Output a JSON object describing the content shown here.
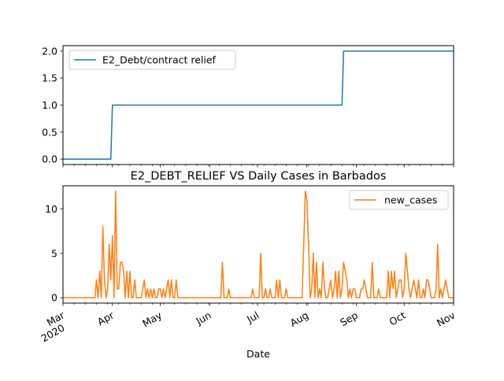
{
  "chart_data": [
    {
      "type": "line",
      "title": "",
      "xlabel": "",
      "ylabel": "",
      "xlim": [
        "2020-03-01",
        "2020-11-01"
      ],
      "ylim": [
        -0.1,
        2.1
      ],
      "yticks": [
        0.0,
        0.5,
        1.0,
        1.5,
        2.0
      ],
      "ytick_labels": [
        "0.0",
        "0.5",
        "1.0",
        "1.5",
        "2.0"
      ],
      "legend": "upper-left",
      "grid": false,
      "series": [
        {
          "name": "E2_Debt/contract relief",
          "color": "#1f77b4",
          "points": [
            [
              "2020-03-01",
              0
            ],
            [
              "2020-03-31",
              0
            ],
            [
              "2020-04-01",
              1
            ],
            [
              "2020-08-23",
              1
            ],
            [
              "2020-08-24",
              2
            ],
            [
              "2020-11-01",
              2
            ]
          ]
        }
      ]
    },
    {
      "type": "line",
      "title": "E2_DEBT_RELIEF VS Daily Cases in Barbados",
      "xlabel": "Date",
      "ylabel": "",
      "xlim": [
        "2020-03-01",
        "2020-11-01"
      ],
      "ylim": [
        -0.6,
        12.6
      ],
      "yticks": [
        0,
        5,
        10
      ],
      "ytick_labels": [
        "0",
        "5",
        "10"
      ],
      "xtick_labels": [
        {
          "date": "2020-03-01",
          "label": "Mar",
          "sub": "2020"
        },
        {
          "date": "2020-04-01",
          "label": "Apr",
          "sub": ""
        },
        {
          "date": "2020-05-01",
          "label": "May",
          "sub": ""
        },
        {
          "date": "2020-06-01",
          "label": "Jun",
          "sub": ""
        },
        {
          "date": "2020-07-01",
          "label": "Jul",
          "sub": ""
        },
        {
          "date": "2020-08-01",
          "label": "Aug",
          "sub": ""
        },
        {
          "date": "2020-09-01",
          "label": "Sep",
          "sub": ""
        },
        {
          "date": "2020-10-01",
          "label": "Oct",
          "sub": ""
        },
        {
          "date": "2020-11-01",
          "label": "Nov",
          "sub": ""
        }
      ],
      "legend": "upper-right",
      "grid": false,
      "series": [
        {
          "name": "new_cases",
          "color": "#ff7f0e",
          "points": [
            [
              "2020-03-01",
              0
            ],
            [
              "2020-03-21",
              0
            ],
            [
              "2020-03-22",
              2
            ],
            [
              "2020-03-23",
              0
            ],
            [
              "2020-03-24",
              3
            ],
            [
              "2020-03-25",
              0
            ],
            [
              "2020-03-26",
              8
            ],
            [
              "2020-03-27",
              2
            ],
            [
              "2020-03-28",
              0
            ],
            [
              "2020-03-29",
              1
            ],
            [
              "2020-03-30",
              6
            ],
            [
              "2020-03-31",
              2
            ],
            [
              "2020-04-01",
              7
            ],
            [
              "2020-04-02",
              0
            ],
            [
              "2020-04-03",
              12
            ],
            [
              "2020-04-04",
              1
            ],
            [
              "2020-04-05",
              1
            ],
            [
              "2020-04-06",
              4
            ],
            [
              "2020-04-07",
              4
            ],
            [
              "2020-04-08",
              3
            ],
            [
              "2020-04-09",
              0
            ],
            [
              "2020-04-10",
              3
            ],
            [
              "2020-04-11",
              0
            ],
            [
              "2020-04-12",
              3
            ],
            [
              "2020-04-13",
              0
            ],
            [
              "2020-04-14",
              0
            ],
            [
              "2020-04-15",
              2
            ],
            [
              "2020-04-16",
              0
            ],
            [
              "2020-04-17",
              0
            ],
            [
              "2020-04-18",
              0
            ],
            [
              "2020-04-19",
              0
            ],
            [
              "2020-04-20",
              1
            ],
            [
              "2020-04-21",
              2
            ],
            [
              "2020-04-22",
              0
            ],
            [
              "2020-04-23",
              1
            ],
            [
              "2020-04-24",
              0
            ],
            [
              "2020-04-25",
              1
            ],
            [
              "2020-04-26",
              0
            ],
            [
              "2020-04-27",
              1
            ],
            [
              "2020-04-28",
              0
            ],
            [
              "2020-04-29",
              0
            ],
            [
              "2020-04-30",
              1
            ],
            [
              "2020-05-01",
              1
            ],
            [
              "2020-05-02",
              0
            ],
            [
              "2020-05-03",
              1
            ],
            [
              "2020-05-04",
              0
            ],
            [
              "2020-05-05",
              1
            ],
            [
              "2020-05-06",
              2
            ],
            [
              "2020-05-07",
              0
            ],
            [
              "2020-05-08",
              2
            ],
            [
              "2020-05-09",
              0
            ],
            [
              "2020-05-10",
              0
            ],
            [
              "2020-05-11",
              2
            ],
            [
              "2020-05-12",
              0
            ],
            [
              "2020-05-13",
              0
            ],
            [
              "2020-06-08",
              0
            ],
            [
              "2020-06-09",
              4
            ],
            [
              "2020-06-10",
              0
            ],
            [
              "2020-06-12",
              0
            ],
            [
              "2020-06-13",
              1
            ],
            [
              "2020-06-14",
              0
            ],
            [
              "2020-06-27",
              0
            ],
            [
              "2020-06-28",
              1
            ],
            [
              "2020-06-29",
              0
            ],
            [
              "2020-07-02",
              0
            ],
            [
              "2020-07-03",
              5
            ],
            [
              "2020-07-04",
              0
            ],
            [
              "2020-07-05",
              0
            ],
            [
              "2020-07-06",
              1
            ],
            [
              "2020-07-07",
              0
            ],
            [
              "2020-07-08",
              0
            ],
            [
              "2020-07-09",
              1
            ],
            [
              "2020-07-10",
              0
            ],
            [
              "2020-07-12",
              0
            ],
            [
              "2020-07-13",
              2
            ],
            [
              "2020-07-14",
              0
            ],
            [
              "2020-07-15",
              2
            ],
            [
              "2020-07-16",
              0
            ],
            [
              "2020-07-18",
              0
            ],
            [
              "2020-07-19",
              1
            ],
            [
              "2020-07-20",
              0
            ],
            [
              "2020-07-29",
              0
            ],
            [
              "2020-07-30",
              6
            ],
            [
              "2020-07-31",
              12
            ],
            [
              "2020-08-01",
              11
            ],
            [
              "2020-08-02",
              6
            ],
            [
              "2020-08-03",
              0
            ],
            [
              "2020-08-04",
              1
            ],
            [
              "2020-08-05",
              5
            ],
            [
              "2020-08-06",
              0
            ],
            [
              "2020-08-07",
              4
            ],
            [
              "2020-08-08",
              0
            ],
            [
              "2020-08-09",
              1
            ],
            [
              "2020-08-10",
              0
            ],
            [
              "2020-08-11",
              4
            ],
            [
              "2020-08-12",
              1
            ],
            [
              "2020-08-13",
              0
            ],
            [
              "2020-08-14",
              0
            ],
            [
              "2020-08-15",
              1
            ],
            [
              "2020-08-16",
              2
            ],
            [
              "2020-08-17",
              0
            ],
            [
              "2020-08-18",
              1
            ],
            [
              "2020-08-19",
              3
            ],
            [
              "2020-08-20",
              0
            ],
            [
              "2020-08-21",
              3
            ],
            [
              "2020-08-22",
              0
            ],
            [
              "2020-08-23",
              1
            ],
            [
              "2020-08-24",
              4
            ],
            [
              "2020-08-25",
              3
            ],
            [
              "2020-08-26",
              2
            ],
            [
              "2020-08-27",
              0
            ],
            [
              "2020-08-28",
              1
            ],
            [
              "2020-08-29",
              0
            ],
            [
              "2020-08-30",
              1
            ],
            [
              "2020-08-31",
              1
            ],
            [
              "2020-09-01",
              0
            ],
            [
              "2020-09-03",
              0
            ],
            [
              "2020-09-04",
              1
            ],
            [
              "2020-09-05",
              1
            ],
            [
              "2020-09-06",
              2
            ],
            [
              "2020-09-07",
              1
            ],
            [
              "2020-09-08",
              0
            ],
            [
              "2020-09-10",
              0
            ],
            [
              "2020-09-11",
              4
            ],
            [
              "2020-09-12",
              0
            ],
            [
              "2020-09-14",
              0
            ],
            [
              "2020-09-15",
              1
            ],
            [
              "2020-09-16",
              0
            ],
            [
              "2020-09-20",
              0
            ],
            [
              "2020-09-21",
              3
            ],
            [
              "2020-09-22",
              0
            ],
            [
              "2020-09-23",
              3
            ],
            [
              "2020-09-24",
              1
            ],
            [
              "2020-09-25",
              3
            ],
            [
              "2020-09-26",
              0
            ],
            [
              "2020-09-27",
              1
            ],
            [
              "2020-09-28",
              2
            ],
            [
              "2020-09-29",
              2
            ],
            [
              "2020-09-30",
              0
            ],
            [
              "2020-10-01",
              1
            ],
            [
              "2020-10-02",
              5
            ],
            [
              "2020-10-03",
              3
            ],
            [
              "2020-10-04",
              1
            ],
            [
              "2020-10-05",
              0
            ],
            [
              "2020-10-06",
              1
            ],
            [
              "2020-10-07",
              2
            ],
            [
              "2020-10-08",
              1
            ],
            [
              "2020-10-09",
              0
            ],
            [
              "2020-10-10",
              2
            ],
            [
              "2020-10-11",
              0
            ],
            [
              "2020-10-12",
              0
            ],
            [
              "2020-10-13",
              1
            ],
            [
              "2020-10-14",
              0
            ],
            [
              "2020-10-15",
              2
            ],
            [
              "2020-10-16",
              2
            ],
            [
              "2020-10-17",
              1
            ],
            [
              "2020-10-18",
              0
            ],
            [
              "2020-10-20",
              0
            ],
            [
              "2020-10-21",
              1
            ],
            [
              "2020-10-22",
              6
            ],
            [
              "2020-10-23",
              0
            ],
            [
              "2020-10-24",
              1
            ],
            [
              "2020-10-25",
              0
            ],
            [
              "2020-10-26",
              1
            ],
            [
              "2020-10-27",
              2
            ],
            [
              "2020-10-28",
              1
            ],
            [
              "2020-10-29",
              0
            ],
            [
              "2020-11-01",
              0
            ]
          ]
        }
      ]
    }
  ]
}
